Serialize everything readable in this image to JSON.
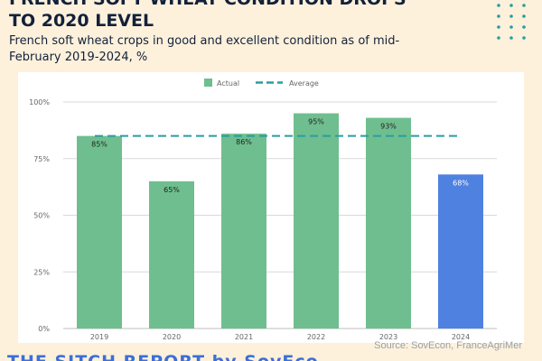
{
  "header": {
    "title_line1": "FRENCH SOFT WHEAT CONDITION DROPS",
    "title_line2": "TO 2020 LEVEL",
    "subtitle": "French soft wheat crops in good and excellent condition as of mid-February 2019-2024, %"
  },
  "footer": {
    "source": "Source: SovEcon, FranceAgriMer",
    "brand": "THE SITCH REPORT by SovEco"
  },
  "chart_data": {
    "type": "bar",
    "categories": [
      "2019",
      "2020",
      "2021",
      "2022",
      "2023",
      "2024"
    ],
    "series": [
      {
        "name": "Actual",
        "values": [
          85,
          65,
          86,
          95,
          93,
          68
        ]
      }
    ],
    "data_labels": [
      "85%",
      "65%",
      "86%",
      "95%",
      "93%",
      "68%"
    ],
    "average": {
      "name": "Average",
      "value": 85
    },
    "y_ticks": [
      0,
      25,
      50,
      75,
      100
    ],
    "y_tick_labels": [
      "0%",
      "25%",
      "50%",
      "75%",
      "100%"
    ],
    "ylim": [
      0,
      100
    ],
    "legend_position": "top",
    "grid": true,
    "colors": {
      "actual": "#6fbe8f",
      "highlight": "#4f81e0",
      "average": "#279ea0",
      "grid": "#d9d9d9"
    }
  }
}
